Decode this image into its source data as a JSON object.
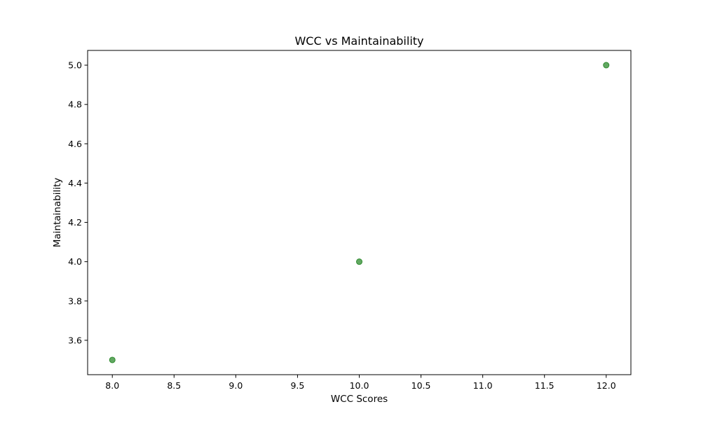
{
  "chart_data": {
    "type": "scatter",
    "title": "WCC vs Maintainability",
    "xlabel": "WCC Scores",
    "ylabel": "Maintainability",
    "xlim": [
      7.8,
      12.2
    ],
    "ylim": [
      3.425,
      5.075
    ],
    "xticks": [
      "8.0",
      "8.5",
      "9.0",
      "9.5",
      "10.0",
      "10.5",
      "11.0",
      "11.5",
      "12.0"
    ],
    "yticks": [
      "3.6",
      "3.8",
      "4.0",
      "4.2",
      "4.4",
      "4.6",
      "4.8",
      "5.0"
    ],
    "series": [
      {
        "color": "#2e8b2e",
        "points": [
          {
            "x": 8,
            "y": 3.5
          },
          {
            "x": 10,
            "y": 4.0
          },
          {
            "x": 12,
            "y": 5.0
          }
        ]
      }
    ],
    "grid": false,
    "legend": "none"
  }
}
